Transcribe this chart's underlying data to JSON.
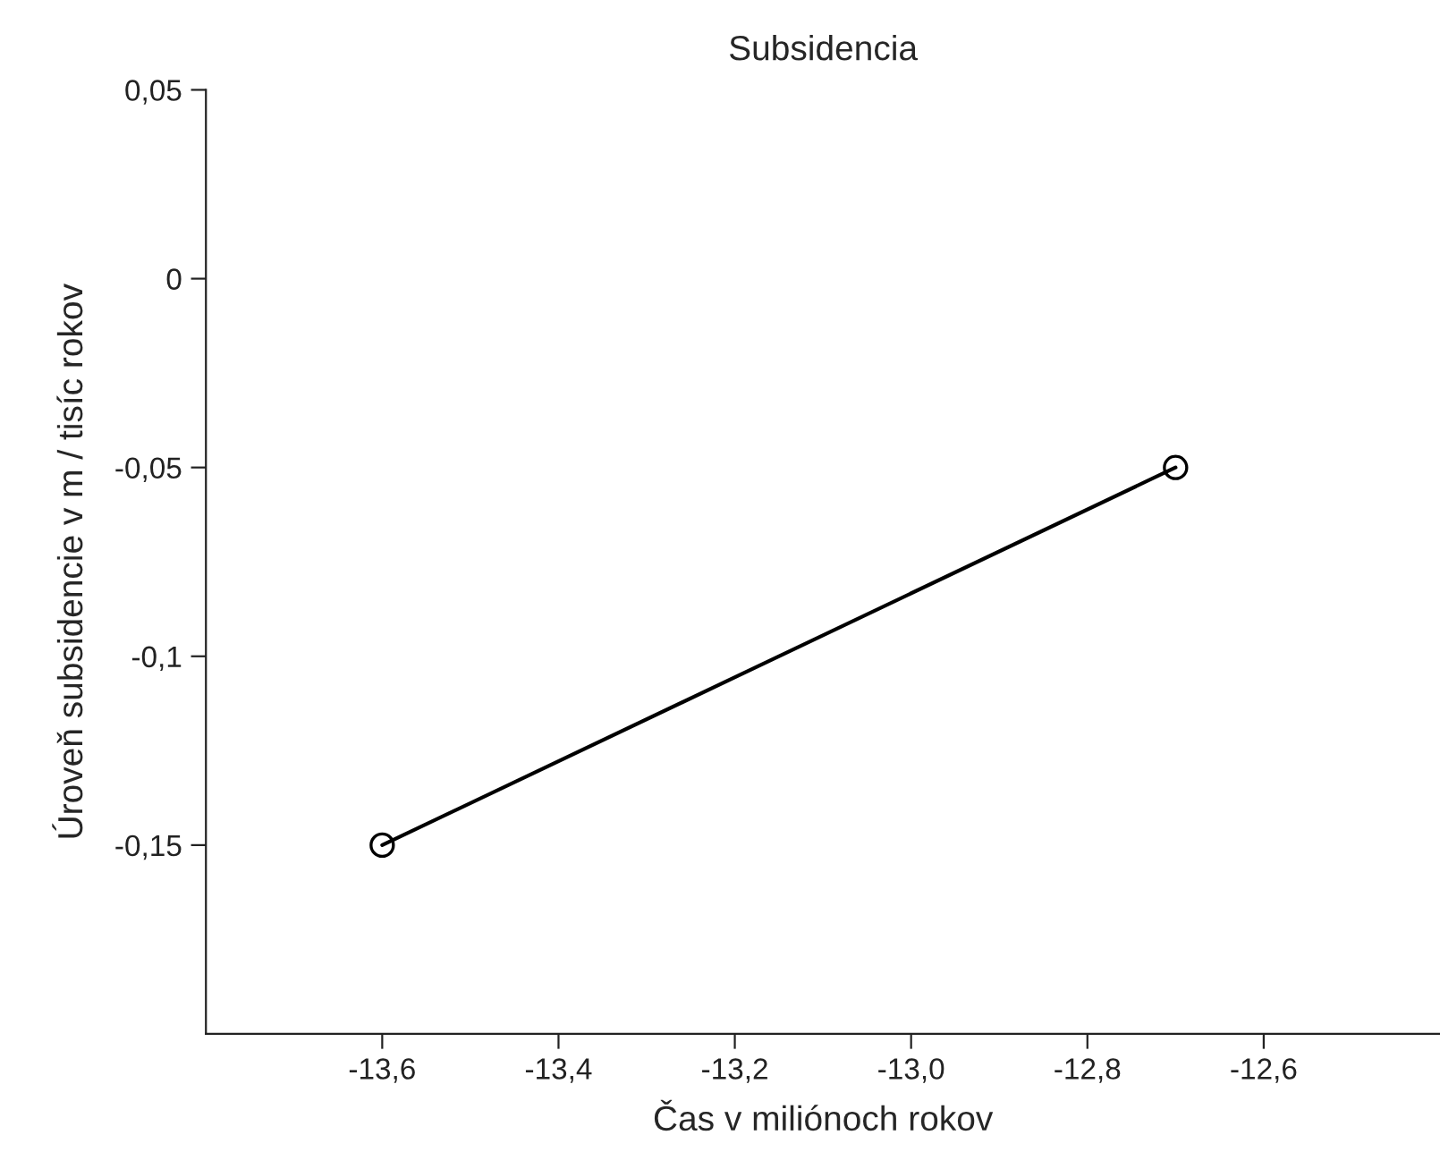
{
  "chart_data": {
    "type": "line",
    "title": "Subsidencia",
    "xlabel": "Čas v miliónoch rokov",
    "ylabel": "Úroveň subsidencie v m / tisíc rokov",
    "x": [
      -13.6,
      -12.7
    ],
    "series": [
      {
        "color": "#000000",
        "values": [
          -0.15,
          -0.05
        ]
      }
    ],
    "marker": "circle",
    "line_style": "solid",
    "grid": false,
    "xlim": [
      -13.8,
      -12.4
    ],
    "xticks": [
      {
        "value": -13.6,
        "label": "-13,6"
      },
      {
        "value": -13.4,
        "label": "-13,4"
      },
      {
        "value": -13.2,
        "label": "-13,2"
      },
      {
        "value": -13.0,
        "label": "-13,0"
      },
      {
        "value": -12.8,
        "label": "-12,8"
      },
      {
        "value": -12.6,
        "label": "-12,6"
      }
    ],
    "ylim": [
      -0.2,
      0.05
    ],
    "yticks": [
      {
        "value": 0.05,
        "label": "0,05"
      },
      0,
      {
        "value": -0.05,
        "label": "-0,05"
      },
      {
        "value": -0.1,
        "label": "-0,1"
      },
      {
        "value": -0.15,
        "label": "-0,15"
      }
    ]
  }
}
